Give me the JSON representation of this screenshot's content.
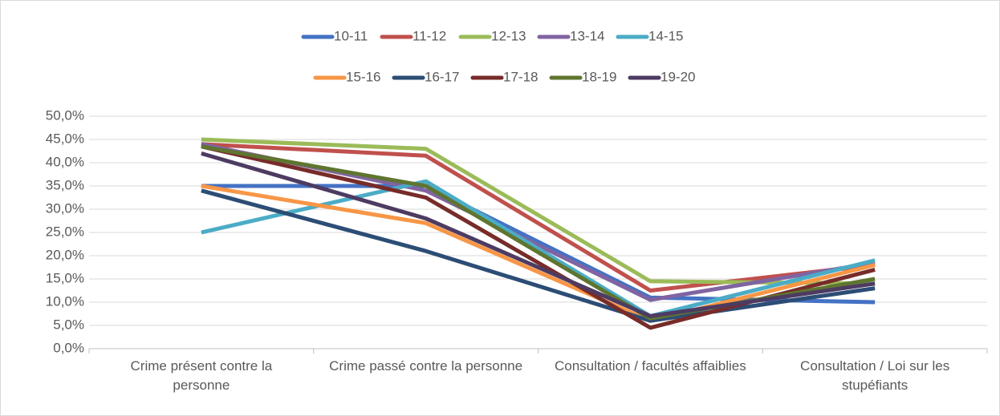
{
  "chart_data": {
    "type": "line",
    "categories": [
      "Crime présent contre la personne",
      "Crime passé contre la personne",
      "Consultation / facultés affaiblies",
      "Consultation / Loi sur les stupéfiants"
    ],
    "series": [
      {
        "name": "10-11",
        "color": "#4472c4",
        "values": [
          35,
          35,
          11,
          10
        ]
      },
      {
        "name": "11-12",
        "color": "#c0504d",
        "values": [
          44,
          41.5,
          12.5,
          18
        ]
      },
      {
        "name": "12-13",
        "color": "#9bbb59",
        "values": [
          45,
          43,
          14.5,
          14
        ]
      },
      {
        "name": "13-14",
        "color": "#8064a2",
        "values": [
          44,
          34,
          10.5,
          18.5
        ]
      },
      {
        "name": "14-15",
        "color": "#4bacc6",
        "values": [
          25,
          36,
          7,
          19
        ]
      },
      {
        "name": "15-16",
        "color": "#f79646",
        "values": [
          35,
          27,
          6,
          18
        ]
      },
      {
        "name": "16-17",
        "color": "#2c4d75",
        "values": [
          34,
          21,
          6,
          13
        ]
      },
      {
        "name": "17-18",
        "color": "#772c2a",
        "values": [
          43.5,
          32.5,
          4.5,
          17
        ]
      },
      {
        "name": "18-19",
        "color": "#5f7530",
        "values": [
          43.5,
          35,
          6.5,
          15
        ]
      },
      {
        "name": "19-20",
        "color": "#4d3b62",
        "values": [
          42,
          28,
          7,
          14
        ]
      }
    ],
    "ylim": [
      0,
      50
    ],
    "yticks": [
      {
        "value": 0,
        "label": "0,0%"
      },
      {
        "value": 5,
        "label": "5,0%"
      },
      {
        "value": 10,
        "label": "10,0%"
      },
      {
        "value": 15,
        "label": "15,0%"
      },
      {
        "value": 20,
        "label": "20,0%"
      },
      {
        "value": 25,
        "label": "25,0%"
      },
      {
        "value": 30,
        "label": "30,0%"
      },
      {
        "value": 35,
        "label": "35,0%"
      },
      {
        "value": 40,
        "label": "40,0%"
      },
      {
        "value": 45,
        "label": "45,0%"
      },
      {
        "value": 50,
        "label": "50,0%"
      }
    ],
    "grid": true,
    "legend": "top"
  }
}
